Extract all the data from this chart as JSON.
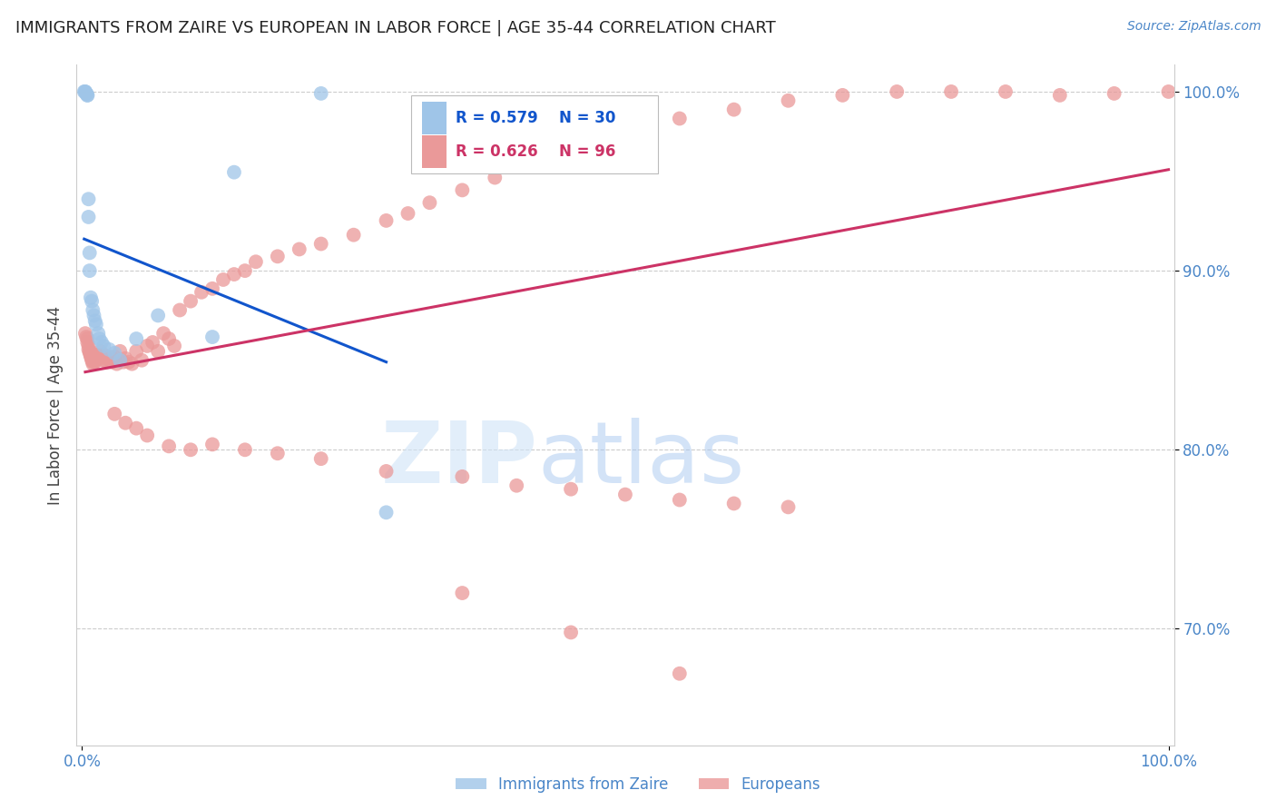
{
  "title": "IMMIGRANTS FROM ZAIRE VS EUROPEAN IN LABOR FORCE | AGE 35-44 CORRELATION CHART",
  "source": "Source: ZipAtlas.com",
  "ylabel": "In Labor Force | Age 35-44",
  "xlim": [
    0.0,
    1.0
  ],
  "ylim": [
    0.635,
    1.015
  ],
  "ytick_vals": [
    0.7,
    0.8,
    0.9,
    1.0
  ],
  "ytick_labels": [
    "70.0%",
    "80.0%",
    "90.0%",
    "100.0%"
  ],
  "xtick_vals": [
    0.0,
    1.0
  ],
  "xtick_labels": [
    "0.0%",
    "100.0%"
  ],
  "blue_color": "#9fc5e8",
  "pink_color": "#ea9999",
  "blue_line_color": "#1155cc",
  "pink_line_color": "#cc3366",
  "axis_color": "#4a86c8",
  "grid_color": "#cccccc",
  "title_color": "#222222",
  "blue_x": [
    0.002,
    0.003,
    0.003,
    0.004,
    0.004,
    0.005,
    0.005,
    0.006,
    0.006,
    0.007,
    0.007,
    0.008,
    0.009,
    0.01,
    0.011,
    0.012,
    0.013,
    0.015,
    0.016,
    0.018,
    0.02,
    0.025,
    0.03,
    0.035,
    0.05,
    0.07,
    0.12,
    0.14,
    0.22,
    0.28
  ],
  "blue_y": [
    1.0,
    1.0,
    1.0,
    0.999,
    0.999,
    0.998,
    0.998,
    0.94,
    0.93,
    0.91,
    0.9,
    0.885,
    0.883,
    0.878,
    0.875,
    0.872,
    0.87,
    0.865,
    0.862,
    0.86,
    0.858,
    0.856,
    0.854,
    0.85,
    0.862,
    0.875,
    0.863,
    0.955,
    0.999,
    0.765
  ],
  "pink_x": [
    0.003,
    0.004,
    0.005,
    0.005,
    0.006,
    0.006,
    0.007,
    0.007,
    0.008,
    0.008,
    0.009,
    0.009,
    0.01,
    0.01,
    0.011,
    0.012,
    0.013,
    0.014,
    0.015,
    0.016,
    0.017,
    0.018,
    0.019,
    0.02,
    0.022,
    0.023,
    0.025,
    0.027,
    0.028,
    0.03,
    0.032,
    0.035,
    0.038,
    0.04,
    0.043,
    0.046,
    0.05,
    0.055,
    0.06,
    0.065,
    0.07,
    0.075,
    0.08,
    0.085,
    0.09,
    0.1,
    0.11,
    0.12,
    0.13,
    0.14,
    0.15,
    0.16,
    0.18,
    0.2,
    0.22,
    0.25,
    0.28,
    0.3,
    0.32,
    0.35,
    0.38,
    0.4,
    0.43,
    0.46,
    0.5,
    0.55,
    0.6,
    0.65,
    0.7,
    0.75,
    0.8,
    0.85,
    0.9,
    0.95,
    1.0,
    0.03,
    0.04,
    0.05,
    0.06,
    0.08,
    0.1,
    0.12,
    0.15,
    0.18,
    0.22,
    0.28,
    0.35,
    0.4,
    0.45,
    0.5,
    0.55,
    0.6,
    0.65,
    0.35,
    0.45,
    0.55
  ],
  "pink_y": [
    0.865,
    0.863,
    0.862,
    0.86,
    0.858,
    0.856,
    0.855,
    0.854,
    0.853,
    0.852,
    0.851,
    0.85,
    0.849,
    0.848,
    0.85,
    0.849,
    0.852,
    0.853,
    0.851,
    0.853,
    0.855,
    0.852,
    0.85,
    0.853,
    0.851,
    0.849,
    0.852,
    0.849,
    0.851,
    0.852,
    0.848,
    0.855,
    0.849,
    0.851,
    0.849,
    0.848,
    0.855,
    0.85,
    0.858,
    0.86,
    0.855,
    0.865,
    0.862,
    0.858,
    0.878,
    0.883,
    0.888,
    0.89,
    0.895,
    0.898,
    0.9,
    0.905,
    0.908,
    0.912,
    0.915,
    0.92,
    0.928,
    0.932,
    0.938,
    0.945,
    0.952,
    0.958,
    0.965,
    0.97,
    0.978,
    0.985,
    0.99,
    0.995,
    0.998,
    1.0,
    1.0,
    1.0,
    0.998,
    0.999,
    1.0,
    0.82,
    0.815,
    0.812,
    0.808,
    0.802,
    0.8,
    0.803,
    0.8,
    0.798,
    0.795,
    0.788,
    0.785,
    0.78,
    0.778,
    0.775,
    0.772,
    0.77,
    0.768,
    0.72,
    0.698,
    0.675
  ]
}
